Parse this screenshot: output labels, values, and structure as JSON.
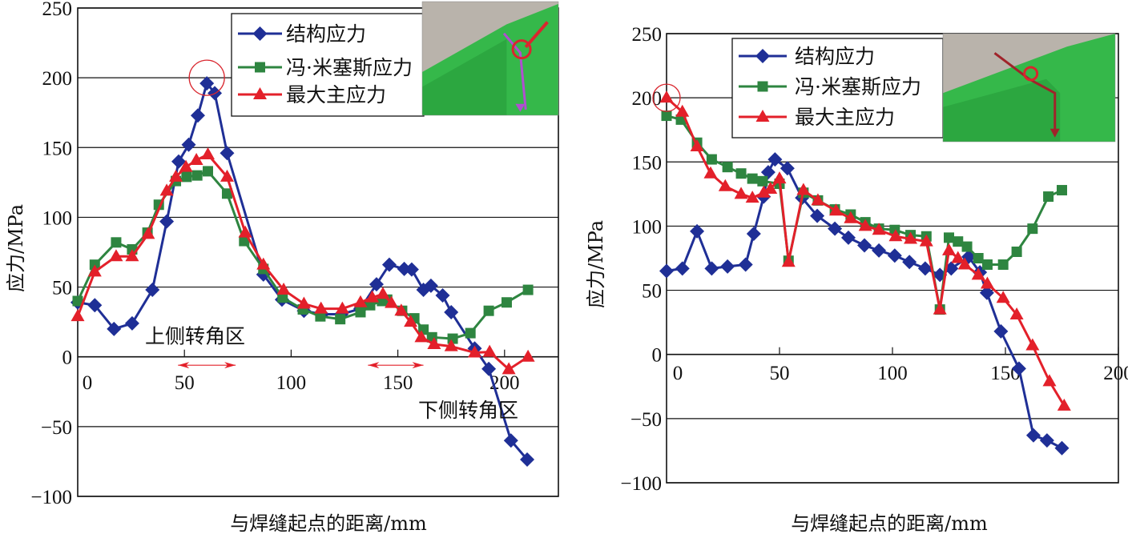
{
  "figure": {
    "description": "Two stress distribution charts along weld seam",
    "colors": {
      "structural": "#1f2f96",
      "von_mises": "#2e8540",
      "max_principal": "#e3202a",
      "grid": "#111111",
      "highlight_circle": "#d9262e",
      "annot_arrow": "#e3202a",
      "photo_green": "#35b84a",
      "photo_concrete": "#b9b3ab"
    }
  },
  "chart_data": [
    {
      "type": "line",
      "id": "left",
      "title": "",
      "xlabel": "与焊缝起点的距离/mm",
      "ylabel": "应力/MPa",
      "xlim": [
        0,
        225
      ],
      "ylim": [
        -100,
        250
      ],
      "xticks": [
        0,
        50,
        100,
        150,
        200
      ],
      "xtick_labels": [
        "0",
        "50",
        "100",
        "150",
        "200"
      ],
      "yticks": [
        250,
        200,
        150,
        100,
        50,
        0,
        -50,
        -100
      ],
      "ytick_labels": [
        "250",
        "200",
        "150",
        "100",
        "50",
        "0",
        "−50",
        "−100"
      ],
      "grid": "horizontal",
      "legend": {
        "position": "top-center",
        "entries": [
          "结构应力",
          "冯·米塞斯应力",
          "最大主应力"
        ]
      },
      "series": [
        {
          "name": "结构应力",
          "marker": "diamond",
          "color_key": "structural",
          "x": [
            0,
            8,
            17,
            25.5,
            35,
            41.7,
            47.3,
            52,
            56.3,
            60.5,
            64.2,
            70,
            87,
            95.7,
            106,
            114.5,
            123.5,
            132.5,
            140,
            146,
            153,
            156.5,
            162,
            165.5,
            171,
            175,
            186,
            192.6,
            203,
            210.6
          ],
          "y": [
            39,
            37,
            20,
            24,
            48,
            97,
            140,
            152,
            173,
            196,
            189,
            146,
            59,
            41,
            33,
            30.5,
            30.5,
            34.5,
            52,
            66,
            63,
            62.6,
            48,
            51,
            44,
            32,
            6,
            -8.6,
            -60,
            -73.6
          ]
        },
        {
          "name": "冯·米塞斯应力",
          "marker": "square",
          "color_key": "von_mises",
          "x": [
            0,
            8,
            18,
            25.5,
            32.7,
            38,
            46,
            51,
            56,
            61,
            70,
            78,
            87,
            96,
            105.5,
            113.7,
            123,
            132.5,
            137,
            142.6,
            145,
            152,
            157.7,
            162,
            166,
            175.7,
            184,
            192.6,
            201,
            211
          ],
          "y": [
            40,
            66,
            82,
            77,
            89,
            109,
            126,
            129,
            130,
            133,
            117,
            83,
            63,
            42.5,
            34,
            29,
            27,
            32,
            37,
            40,
            41,
            33,
            27.6,
            19.5,
            14,
            13,
            17,
            33,
            39,
            48
          ]
        },
        {
          "name": "最大主应力",
          "marker": "triangle",
          "color_key": "max_principal",
          "x": [
            0,
            8,
            18,
            25.5,
            33,
            41.7,
            46,
            50.7,
            55.6,
            61,
            70,
            78.5,
            87,
            96.5,
            106,
            114,
            124,
            132.5,
            138,
            143,
            147,
            151.6,
            156,
            161,
            167,
            175,
            186,
            193,
            202,
            211
          ],
          "y": [
            29,
            61,
            72,
            72,
            88,
            119,
            129,
            136,
            141,
            145,
            129,
            89,
            66,
            48,
            38,
            34.5,
            34.5,
            39,
            42.5,
            45,
            38.5,
            33,
            25,
            14,
            9,
            7.5,
            3,
            3.5,
            -9,
            0
          ]
        }
      ],
      "annotations": [
        {
          "type": "circle",
          "x": 60.5,
          "y": 200,
          "label": "peak-highlight"
        },
        {
          "type": "text",
          "text": "上侧转角区",
          "x": 55,
          "y": 15
        },
        {
          "type": "double-arrow",
          "x_from": 47,
          "x_to": 74,
          "y": -6
        },
        {
          "type": "text",
          "text": "下侧转角区",
          "x": 183,
          "y": -38
        },
        {
          "type": "double-arrow",
          "x_from": 136,
          "x_to": 162,
          "y": -6
        }
      ]
    },
    {
      "type": "line",
      "id": "right",
      "title": "",
      "xlabel": "与焊缝起点的距离/mm",
      "ylabel": "应力/MPa",
      "xlim": [
        0,
        200
      ],
      "ylim": [
        -100,
        250
      ],
      "xticks": [
        0,
        50,
        100,
        150,
        200
      ],
      "xtick_labels": [
        "0",
        "50",
        "100",
        "150",
        "200"
      ],
      "yticks": [
        250,
        200,
        150,
        100,
        50,
        0,
        -50,
        -100
      ],
      "ytick_labels": [
        "250",
        "200",
        "150",
        "100",
        "50",
        "0",
        "−50",
        "−100"
      ],
      "grid": "horizontal",
      "legend": {
        "position": "top-center",
        "entries": [
          "结构应力",
          "冯·米塞斯应力",
          "最大主应力"
        ]
      },
      "series": [
        {
          "name": "结构应力",
          "marker": "diamond",
          "color_key": "structural",
          "x": [
            0,
            7,
            13.5,
            20,
            27,
            35,
            38.6,
            43,
            45,
            48,
            53.5,
            60,
            66.7,
            74.5,
            80.5,
            87.6,
            94,
            101,
            107.5,
            114.5,
            121,
            126,
            133.7,
            138.7,
            141.8,
            148,
            156,
            162.4,
            168.4,
            175
          ],
          "y": [
            65,
            67,
            96,
            67,
            68.5,
            70,
            94,
            123,
            142,
            152,
            145,
            122,
            108,
            98,
            91,
            85,
            81,
            77,
            72,
            67,
            62,
            67,
            76,
            64,
            48,
            18,
            -11,
            -63,
            -67,
            -73
          ]
        },
        {
          "name": "冯·米塞斯应力",
          "marker": "square",
          "color_key": "von_mises",
          "x": [
            0,
            6.4,
            13.5,
            20,
            27,
            33,
            38,
            42.5,
            50,
            54,
            60.6,
            67,
            74.5,
            81.5,
            88,
            94,
            101,
            108,
            115,
            121,
            125,
            129,
            133,
            138,
            142,
            149,
            155,
            162,
            169,
            175
          ],
          "y": [
            186,
            183,
            165,
            152,
            146,
            141,
            137,
            135,
            133,
            73,
            126,
            120,
            113,
            109,
            103,
            98,
            97,
            93,
            92,
            35,
            91,
            88,
            84,
            75,
            70,
            70,
            80,
            98,
            123,
            128
          ]
        },
        {
          "name": "最大主应力",
          "marker": "triangle",
          "color_key": "max_principal",
          "x": [
            0,
            7,
            13.5,
            19.5,
            26,
            33,
            38,
            43,
            46,
            50,
            54,
            60.6,
            67,
            75,
            81.5,
            88,
            94,
            101.4,
            108,
            115,
            121,
            125,
            129,
            132,
            138,
            142,
            149,
            155,
            162,
            169.5,
            176
          ],
          "y": [
            200,
            189,
            162,
            141,
            131,
            125,
            122,
            126,
            129,
            137,
            72,
            128,
            120,
            112,
            106,
            100,
            97,
            92,
            90,
            88,
            35,
            81,
            75,
            70,
            62,
            55,
            44,
            31,
            7,
            -21,
            -40
          ]
        }
      ],
      "annotations": [
        {
          "type": "circle",
          "x": 0,
          "y": 200,
          "label": "peak-highlight"
        }
      ]
    }
  ],
  "legend_labels": {
    "structural": "结构应力",
    "von_mises": "冯·米塞斯应力",
    "max_principal": "最大主应力"
  },
  "photos": {
    "left": {
      "description": "green steel frame corner on concrete with weld path marked (purple arrow, red circle)"
    },
    "right": {
      "description": "green steel frame corner on concrete with weld path marked (dark red arrow, red circle)"
    }
  }
}
